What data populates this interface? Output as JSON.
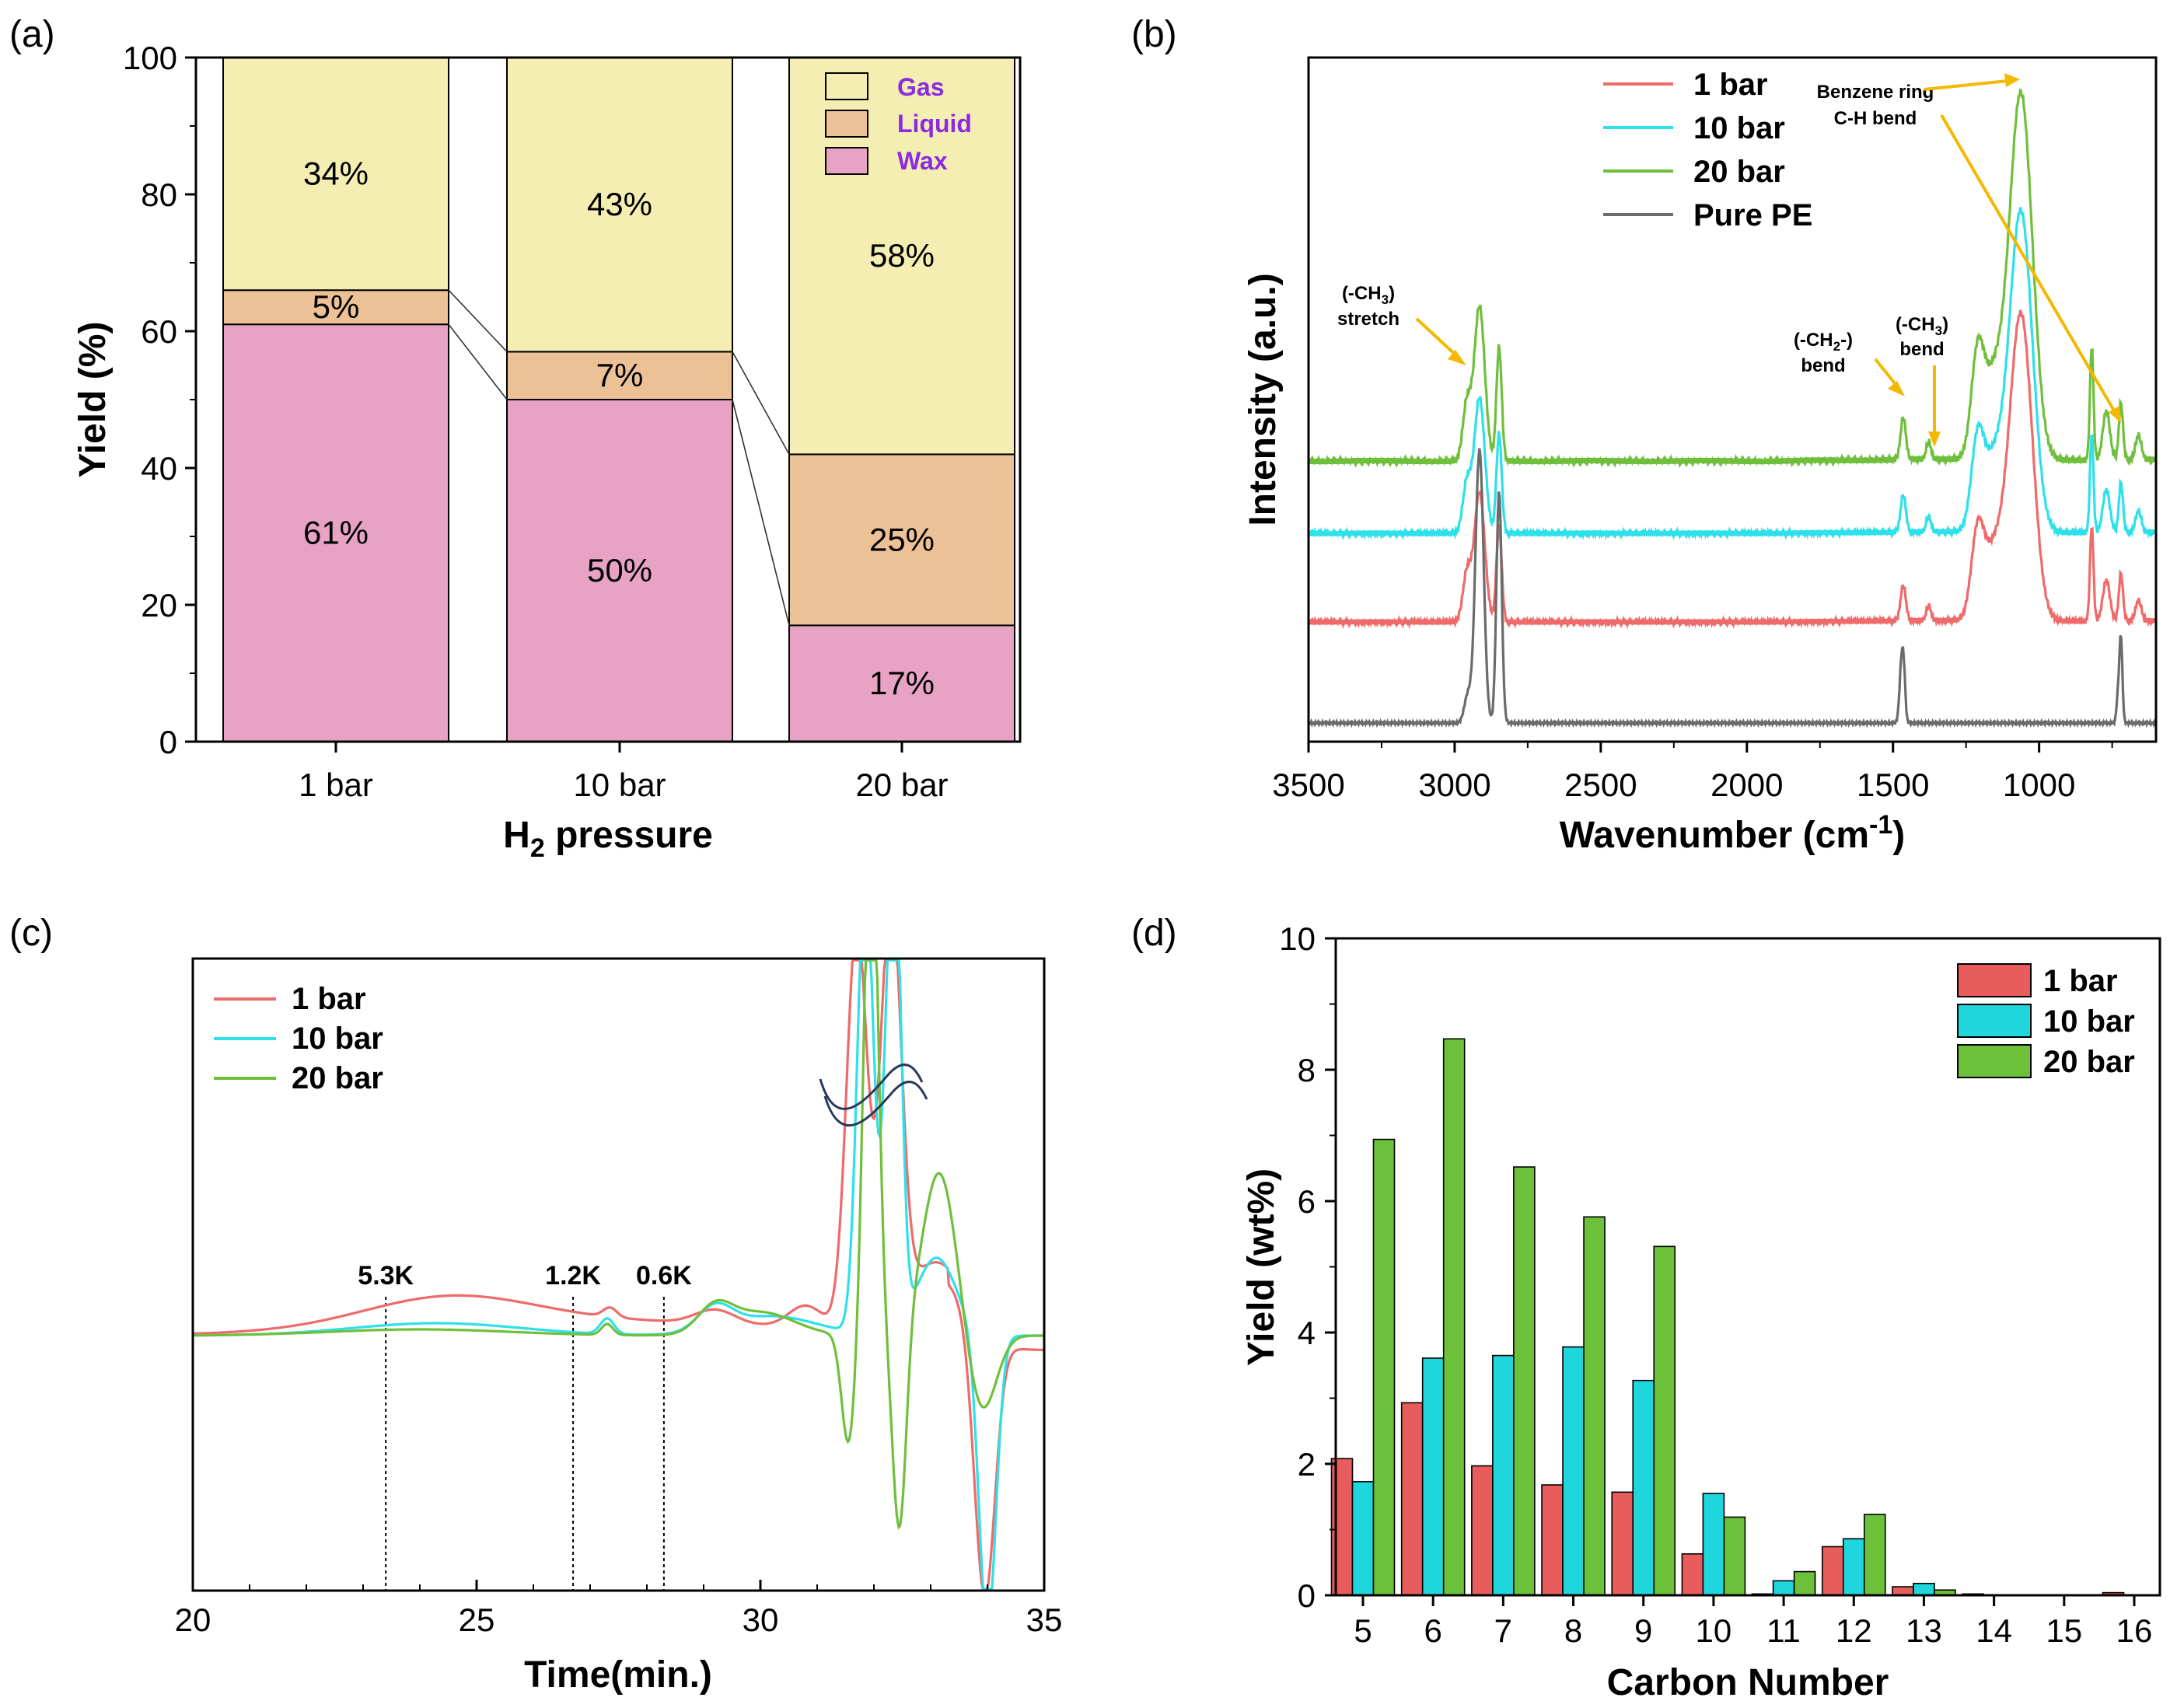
{
  "chart_data": [
    {
      "panel": "(a)",
      "type": "bar",
      "stacked": true,
      "categories": [
        "1 bar",
        "10 bar",
        "20 bar"
      ],
      "series": [
        {
          "name": "Wax",
          "values": [
            61,
            50,
            17
          ],
          "color": "#e8a3c4"
        },
        {
          "name": "Liquid",
          "values": [
            5,
            7,
            25
          ],
          "color": "#edc196"
        },
        {
          "name": "Gas",
          "values": [
            34,
            43,
            58
          ],
          "color": "#f4eeb2"
        }
      ],
      "segment_labels": [
        [
          "61%",
          "5%",
          "34%"
        ],
        [
          "50%",
          "7%",
          "43%"
        ],
        [
          "17%",
          "25%",
          "58%"
        ]
      ],
      "legend_entries": [
        "Gas",
        "Liquid",
        "Wax"
      ],
      "xlabel_main": "H",
      "xlabel_sub": "2",
      "xlabel_rest": " pressure",
      "ylabel": "Yield (%)",
      "ylim": [
        0,
        100
      ],
      "yticks": [
        "0",
        "20",
        "40",
        "60",
        "80",
        "100"
      ]
    },
    {
      "panel": "(b)",
      "type": "line",
      "xlabel": "Wavenumber (cm",
      "xlabel_sup": "-1",
      "xlabel_end": ")",
      "ylabel": "Intensity (a.u.)",
      "xlim": [
        3500,
        600
      ],
      "xticks": [
        "3500",
        "3000",
        "2500",
        "2000",
        "1500",
        "1000"
      ],
      "xtick_values": [
        3500,
        3000,
        2500,
        2000,
        1500,
        1000
      ],
      "series": [
        {
          "name": "1 bar",
          "color": "#ef6a6a",
          "offset": 0.42
        },
        {
          "name": "10 bar",
          "color": "#2ee0ea",
          "offset": 0.65
        },
        {
          "name": "20 bar",
          "color": "#6fbf3c",
          "offset": 0.83
        },
        {
          "name": "Pure PE",
          "color": "#6b6b6b",
          "offset": 0.0
        }
      ],
      "annotations": {
        "ch3_stretch_a": "(-CH",
        "ch3_stretch_sub": "3",
        "ch3_stretch_b": ")",
        "stretch": "stretch",
        "ch2_bend_a": "(-CH",
        "ch2_bend_sub": "2",
        "ch2_bend_b": "-)",
        "ch2_bend_label": "bend",
        "ch3_bend_a": "(-CH",
        "ch3_bend_sub": "3",
        "ch3_bend_b": ")",
        "ch3_bend_label": "bend",
        "benzene_1": "Benzene ring",
        "benzene_2": "C-H bend"
      }
    },
    {
      "panel": "(c)",
      "type": "line",
      "xlabel": "Time(min.)",
      "xlim": [
        20,
        35
      ],
      "xticks": [
        "20",
        "25",
        "30",
        "35"
      ],
      "xtick_values": [
        20,
        25,
        30,
        35
      ],
      "series": [
        {
          "name": "1 bar",
          "color": "#ef6a6a"
        },
        {
          "name": "10 bar",
          "color": "#2ee0ea"
        },
        {
          "name": "20 bar",
          "color": "#6fbf3c"
        }
      ],
      "markers": [
        {
          "label": "5.3K",
          "x": 23.4
        },
        {
          "label": "1.2K",
          "x": 26.7
        },
        {
          "label": "0.6K",
          "x": 28.3
        }
      ]
    },
    {
      "panel": "(d)",
      "type": "bar",
      "categories": [
        "5",
        "6",
        "7",
        "8",
        "9",
        "10",
        "11",
        "12",
        "13",
        "14",
        "15",
        "16"
      ],
      "series": [
        {
          "name": "1 bar",
          "color": "#e85c5c",
          "values": [
            2.08,
            2.93,
            1.97,
            1.68,
            1.57,
            0.63,
            0.02,
            0.74,
            0.13,
            0.02,
            0.0,
            0.04
          ]
        },
        {
          "name": "10 bar",
          "color": "#1fd6dc",
          "values": [
            1.73,
            3.61,
            3.65,
            3.78,
            3.27,
            1.55,
            0.22,
            0.86,
            0.18,
            0.0,
            0.0,
            0.0
          ]
        },
        {
          "name": "20 bar",
          "color": "#6cc03a",
          "values": [
            6.94,
            8.47,
            6.52,
            5.76,
            5.31,
            1.19,
            0.36,
            1.23,
            0.08,
            0.0,
            0.0,
            0.0
          ]
        }
      ],
      "xlabel": "Carbon Number",
      "ylabel": "Yield (wt%)",
      "ylim": [
        0,
        10
      ],
      "yticks": [
        "0",
        "2",
        "4",
        "6",
        "8",
        "10"
      ]
    }
  ]
}
